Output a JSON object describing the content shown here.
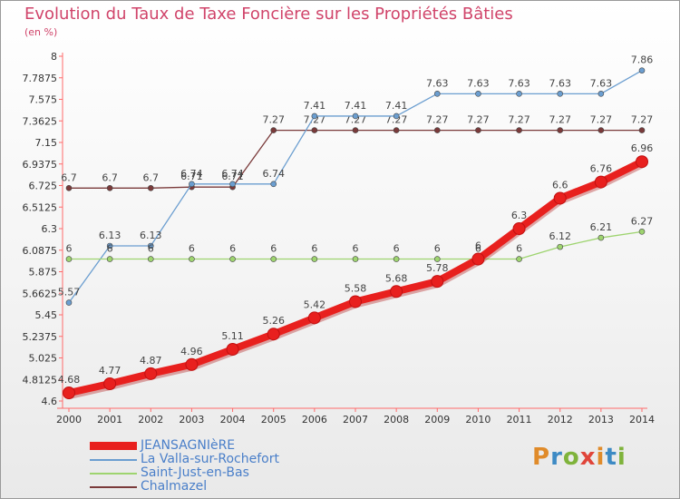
{
  "title": "Evolution du Taux de Taxe Foncière sur les Propriétés Bâties",
  "subtitle": "(en %)",
  "logo_text": "Proxiti",
  "chart_data": {
    "type": "line",
    "title": "Evolution du Taux de Taxe Foncière sur les Propriétés Bâties",
    "ylabel": "(en %)",
    "xlabel": "",
    "x": [
      "2000",
      "2001",
      "2002",
      "2003",
      "2004",
      "2005",
      "2006",
      "2007",
      "2008",
      "2009",
      "2010",
      "2011",
      "2012",
      "2013",
      "2014"
    ],
    "ylim": [
      4.6,
      8
    ],
    "yticks": [
      "4.6",
      "4.8125",
      "5.025",
      "5.2375",
      "5.45",
      "5.6625",
      "5.875",
      "6.0875",
      "6.3",
      "6.5125",
      "6.725",
      "6.9375",
      "7.15",
      "7.3625",
      "7.575",
      "7.7875",
      "8"
    ],
    "grid": false,
    "legend_position": "bottom-left",
    "series": [
      {
        "name": "JEANSAGNIèRE",
        "color": "#e8201e",
        "values": [
          4.68,
          4.77,
          4.87,
          4.96,
          5.11,
          5.26,
          5.42,
          5.58,
          5.68,
          5.78,
          6,
          6.3,
          6.6,
          6.76,
          6.96
        ],
        "labels": [
          "4.68",
          "4.77",
          "4.87",
          "4.96",
          "5.11",
          "5.26",
          "5.42",
          "5.58",
          "5.68",
          "5.78",
          "6",
          "6.3",
          "6.6",
          "6.76",
          "6.96"
        ]
      },
      {
        "name": "La Valla-sur-Rochefort",
        "color": "#6b9ed0",
        "values": [
          5.57,
          6.13,
          6.13,
          6.74,
          6.74,
          6.74,
          7.41,
          7.41,
          7.41,
          7.63,
          7.63,
          7.63,
          7.63,
          7.63,
          7.86
        ],
        "labels": [
          "5.57",
          "6.13",
          "6.13",
          "6.74",
          "6.74",
          "6.74",
          "7.41",
          "7.41",
          "7.41",
          "7.63",
          "7.63",
          "7.63",
          "7.63",
          "7.63",
          "7.86"
        ]
      },
      {
        "name": "Saint-Just-en-Bas",
        "color": "#9ed46f",
        "values": [
          6,
          6,
          6,
          6,
          6,
          6,
          6,
          6,
          6,
          6,
          6,
          6,
          6.12,
          6.21,
          6.27
        ],
        "labels": [
          "6",
          "6",
          "6",
          "6",
          "6",
          "6",
          "6",
          "6",
          "6",
          "6",
          "6",
          "6",
          "6.12",
          "6.21",
          "6.27"
        ]
      },
      {
        "name": "Chalmazel",
        "color": "#7a3a3a",
        "values": [
          6.7,
          6.7,
          6.7,
          6.71,
          6.71,
          7.27,
          7.27,
          7.27,
          7.27,
          7.27,
          7.27,
          7.27,
          7.27,
          7.27,
          7.27
        ],
        "labels": [
          "6.7",
          "6.7",
          "6.7",
          "6.71",
          "6.71",
          "7.27",
          "7.27",
          "7.27",
          "7.27",
          "7.27",
          "7.27",
          "7.27",
          "7.27",
          "7.27",
          "7.27"
        ]
      }
    ]
  }
}
